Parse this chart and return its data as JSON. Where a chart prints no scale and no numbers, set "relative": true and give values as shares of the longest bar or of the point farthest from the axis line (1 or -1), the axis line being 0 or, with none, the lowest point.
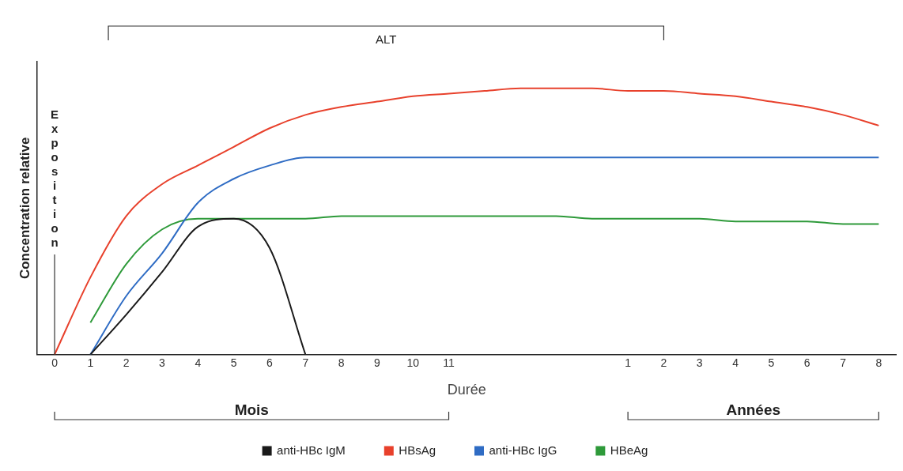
{
  "chart_data": {
    "type": "line",
    "relative": true,
    "ylabel": "Concentration relative",
    "xlabel": "Durée",
    "categories": [
      "0",
      "1",
      "2",
      "3",
      "4",
      "5",
      "6",
      "7",
      "8",
      "9",
      "10",
      "11",
      null,
      null,
      null,
      null,
      "1",
      "2",
      "3",
      "4",
      "5",
      "6",
      "7",
      "8"
    ],
    "series": [
      {
        "name": "anti-HBc IgM",
        "color": "#1a1a1a",
        "values": [
          null,
          0,
          0.15,
          0.31,
          0.48,
          0.51,
          0.4,
          0,
          null,
          null,
          null,
          null,
          null,
          null,
          null,
          null,
          null,
          null,
          null,
          null,
          null,
          null,
          null,
          null
        ]
      },
      {
        "name": "HBsAg",
        "color": "#e8412c",
        "values": [
          0,
          0.29,
          0.52,
          0.64,
          0.71,
          0.78,
          0.85,
          0.9,
          0.93,
          0.95,
          0.97,
          0.98,
          0.99,
          1.0,
          1.0,
          1.0,
          0.99,
          0.99,
          0.98,
          0.97,
          0.95,
          0.93,
          0.9,
          0.86
        ]
      },
      {
        "name": "anti-HBc IgG",
        "color": "#2f6cc4",
        "values": [
          null,
          0,
          0.22,
          0.38,
          0.57,
          0.66,
          0.71,
          0.74,
          0.74,
          0.74,
          0.74,
          0.74,
          0.74,
          0.74,
          0.74,
          0.74,
          0.74,
          0.74,
          0.74,
          0.74,
          0.74,
          0.74,
          0.74,
          0.74
        ]
      },
      {
        "name": "HBeAg",
        "color": "#2e9a3a",
        "values": [
          null,
          0.12,
          0.34,
          0.47,
          0.51,
          0.51,
          0.51,
          0.51,
          0.52,
          0.52,
          0.52,
          0.52,
          0.52,
          0.52,
          0.52,
          0.51,
          0.51,
          0.51,
          0.51,
          0.5,
          0.5,
          0.5,
          0.49,
          0.49
        ]
      }
    ],
    "ref_lines": [
      {
        "axis": "x",
        "value": "0",
        "label": "Exposition"
      }
    ],
    "annotations": [
      "ALT",
      "Mois",
      "Années"
    ],
    "legend": "bottom",
    "marker": "none",
    "line_style": "solid",
    "grid": false
  }
}
